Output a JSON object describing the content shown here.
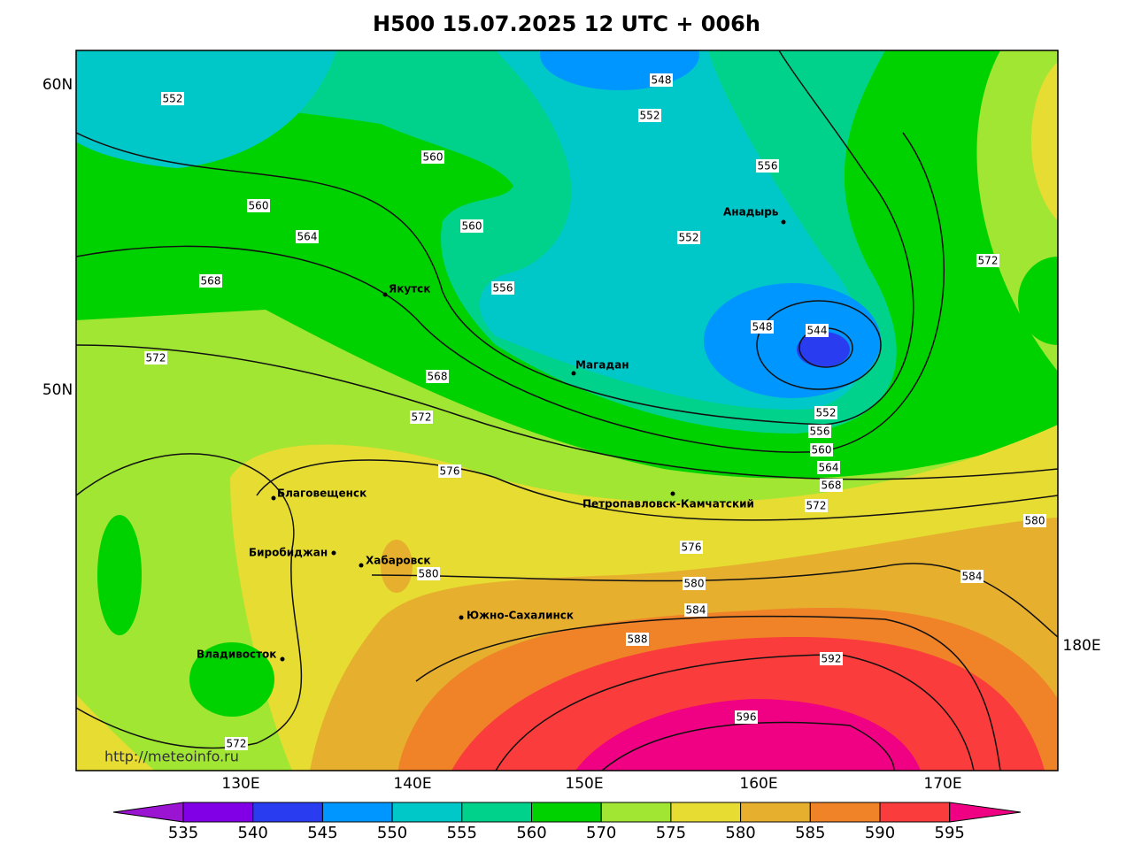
{
  "title": "H500  15.07.2025 12 UTC + 006h",
  "lat_labels": [
    "60N",
    "50N"
  ],
  "lon_labels": [
    "130E",
    "140E",
    "150E",
    "160E",
    "170E",
    "180E"
  ],
  "cities": [
    "Анадырь",
    "Якутск",
    "Магадан",
    "Петропавловск-Камчатский",
    "Благовещенск",
    "Биробиджан",
    "Хабаровск",
    "Южно-Сахалинск",
    "Владивосток"
  ],
  "contour_labels": [
    552,
    548,
    552,
    556,
    560,
    560,
    560,
    564,
    552,
    572,
    568,
    556,
    548,
    544,
    572,
    568,
    552,
    572,
    556,
    560,
    564,
    576,
    568,
    572,
    580,
    576,
    580,
    580,
    584,
    584,
    588,
    592,
    596,
    572
  ],
  "colorbar": {
    "values": [
      535,
      540,
      545,
      550,
      555,
      560,
      570,
      575,
      580,
      585,
      590,
      595
    ],
    "colors": [
      "#9a14d2",
      "#8200e6",
      "#2a3cf0",
      "#0096ff",
      "#00c8c8",
      "#00d28c",
      "#00d200",
      "#a0e632",
      "#e6dc32",
      "#e6af2d",
      "#f08228",
      "#fa3c3c",
      "#f00082"
    ]
  },
  "credit": "http://meteoinfo.ru"
}
